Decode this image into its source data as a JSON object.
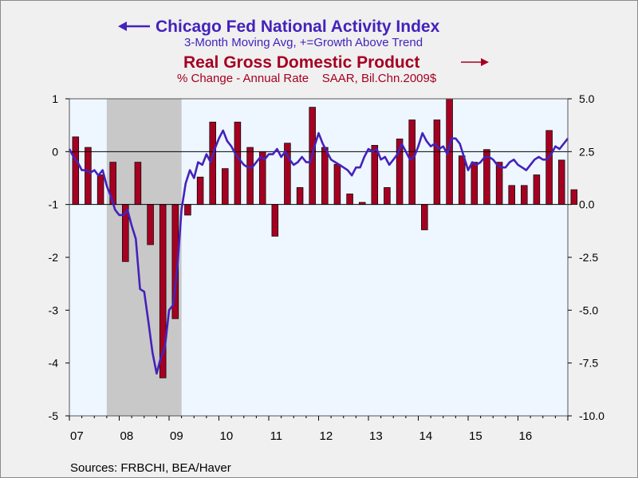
{
  "colors": {
    "index_line": "#4422bb",
    "gdp_bars": "#a50021",
    "plot_bg": "#eef6ff",
    "recession": "#c8c8c8"
  },
  "titles": {
    "left_title": "Chicago Fed National Activity Index",
    "left_subtitle": "3-Month Moving Avg, +=Growth Above Trend",
    "right_title": "Real Gross Domestic Product",
    "right_subtitle": "% Change - Annual Rate    SAAR, Bil.Chn.2009$",
    "left_arrow_icon": "arrow-left-icon",
    "right_arrow_icon": "arrow-right-icon"
  },
  "source": "Sources:  FRBCHI, BEA/Haver",
  "chart_data": {
    "type": "bar+line",
    "x_labels": [
      "07",
      "08",
      "09",
      "10",
      "11",
      "12",
      "13",
      "14",
      "15",
      "16"
    ],
    "x_range": [
      2007.0,
      2017.0
    ],
    "recession": [
      2007.75,
      2009.25
    ],
    "left_axis": {
      "ylim": [
        -5,
        1
      ],
      "ticks": [
        -5,
        -4,
        -3,
        -2,
        -1,
        0,
        1
      ],
      "tick_labels": [
        "-5",
        "-4",
        "-3",
        "-2",
        "-1",
        "0",
        "1"
      ]
    },
    "right_axis": {
      "ylim": [
        -10,
        5
      ],
      "ticks": [
        -10,
        -7.5,
        -5,
        -2.5,
        0,
        2.5,
        5
      ],
      "tick_labels": [
        "-10.0",
        "-7.5",
        "-5.0",
        "-2.5",
        "0.0",
        "2.5",
        "5.0"
      ]
    },
    "gdp_bars": {
      "name": "Real Gross Domestic Product",
      "quarters": [
        "2007Q1",
        "2007Q2",
        "2007Q3",
        "2007Q4",
        "2008Q1",
        "2008Q2",
        "2008Q3",
        "2008Q4",
        "2009Q1",
        "2009Q2",
        "2009Q3",
        "2009Q4",
        "2010Q1",
        "2010Q2",
        "2010Q3",
        "2010Q4",
        "2011Q1",
        "2011Q2",
        "2011Q3",
        "2011Q4",
        "2012Q1",
        "2012Q2",
        "2012Q3",
        "2012Q4",
        "2013Q1",
        "2013Q2",
        "2013Q3",
        "2013Q4",
        "2014Q1",
        "2014Q2",
        "2014Q3",
        "2014Q4",
        "2015Q1",
        "2015Q2",
        "2015Q3",
        "2015Q4",
        "2016Q1",
        "2016Q2",
        "2016Q3",
        "2016Q4",
        "2017Q1"
      ],
      "values": [
        3.2,
        2.7,
        1.4,
        2.0,
        -2.7,
        2.0,
        -1.9,
        -8.2,
        -5.4,
        -0.5,
        1.3,
        3.9,
        1.7,
        3.9,
        2.7,
        2.5,
        -1.5,
        2.9,
        0.8,
        4.6,
        2.7,
        1.9,
        0.5,
        0.1,
        2.8,
        0.8,
        3.1,
        4.0,
        -1.2,
        4.0,
        5.0,
        2.3,
        2.0,
        2.6,
        2.0,
        0.9,
        0.9,
        1.4,
        3.5,
        2.1,
        0.7
      ]
    },
    "cfnai_line": {
      "name": "Chicago Fed National Activity Index",
      "x": [
        2007.0,
        2007.083,
        2007.167,
        2007.25,
        2007.333,
        2007.417,
        2007.5,
        2007.583,
        2007.667,
        2007.75,
        2007.833,
        2007.917,
        2008.0,
        2008.083,
        2008.167,
        2008.25,
        2008.333,
        2008.417,
        2008.5,
        2008.583,
        2008.667,
        2008.75,
        2008.833,
        2008.917,
        2009.0,
        2009.083,
        2009.167,
        2009.25,
        2009.333,
        2009.417,
        2009.5,
        2009.583,
        2009.667,
        2009.75,
        2009.833,
        2009.917,
        2010.0,
        2010.083,
        2010.167,
        2010.25,
        2010.333,
        2010.417,
        2010.5,
        2010.583,
        2010.667,
        2010.75,
        2010.833,
        2010.917,
        2011.0,
        2011.083,
        2011.167,
        2011.25,
        2011.333,
        2011.417,
        2011.5,
        2011.583,
        2011.667,
        2011.75,
        2011.833,
        2011.917,
        2012.0,
        2012.083,
        2012.167,
        2012.25,
        2012.333,
        2012.417,
        2012.5,
        2012.583,
        2012.667,
        2012.75,
        2012.833,
        2012.917,
        2013.0,
        2013.083,
        2013.167,
        2013.25,
        2013.333,
        2013.417,
        2013.5,
        2013.583,
        2013.667,
        2013.75,
        2013.833,
        2013.917,
        2014.0,
        2014.083,
        2014.167,
        2014.25,
        2014.333,
        2014.417,
        2014.5,
        2014.583,
        2014.667,
        2014.75,
        2014.833,
        2014.917,
        2015.0,
        2015.083,
        2015.167,
        2015.25,
        2015.333,
        2015.417,
        2015.5,
        2015.583,
        2015.667,
        2015.75,
        2015.833,
        2015.917,
        2016.0,
        2016.083,
        2016.167,
        2016.25,
        2016.333,
        2016.417,
        2016.5,
        2016.583,
        2016.667,
        2016.75,
        2016.833,
        2016.917,
        2017.0
      ],
      "values": [
        0.05,
        -0.1,
        -0.2,
        -0.35,
        -0.35,
        -0.4,
        -0.35,
        -0.45,
        -0.35,
        -0.65,
        -0.85,
        -1.1,
        -1.2,
        -1.2,
        -1.1,
        -1.4,
        -1.65,
        -2.6,
        -2.65,
        -3.2,
        -3.8,
        -4.2,
        -3.9,
        -3.7,
        -3.0,
        -2.9,
        -2.2,
        -1.1,
        -0.6,
        -0.35,
        -0.5,
        -0.2,
        -0.25,
        -0.05,
        -0.2,
        0.05,
        0.25,
        0.4,
        0.2,
        0.1,
        -0.05,
        -0.15,
        -0.25,
        -0.3,
        -0.3,
        -0.2,
        -0.1,
        -0.15,
        -0.05,
        -0.05,
        0.05,
        -0.1,
        0.0,
        -0.15,
        -0.25,
        -0.2,
        -0.1,
        -0.2,
        -0.2,
        0.1,
        0.35,
        0.15,
        0.0,
        -0.15,
        -0.2,
        -0.25,
        -0.3,
        -0.35,
        -0.45,
        -0.3,
        -0.3,
        -0.1,
        0.05,
        0.0,
        0.05,
        -0.15,
        -0.1,
        -0.25,
        -0.15,
        -0.05,
        0.15,
        0.0,
        -0.15,
        -0.1,
        0.1,
        0.35,
        0.2,
        0.1,
        0.15,
        0.05,
        0.1,
        -0.05,
        0.25,
        0.25,
        0.15,
        -0.1,
        -0.35,
        -0.2,
        -0.25,
        -0.2,
        -0.1,
        -0.1,
        -0.15,
        -0.25,
        -0.3,
        -0.3,
        -0.2,
        -0.15,
        -0.25,
        -0.3,
        -0.35,
        -0.25,
        -0.15,
        -0.1,
        -0.15,
        -0.15,
        -0.05,
        0.1,
        0.05,
        0.15,
        0.25
      ]
    }
  }
}
